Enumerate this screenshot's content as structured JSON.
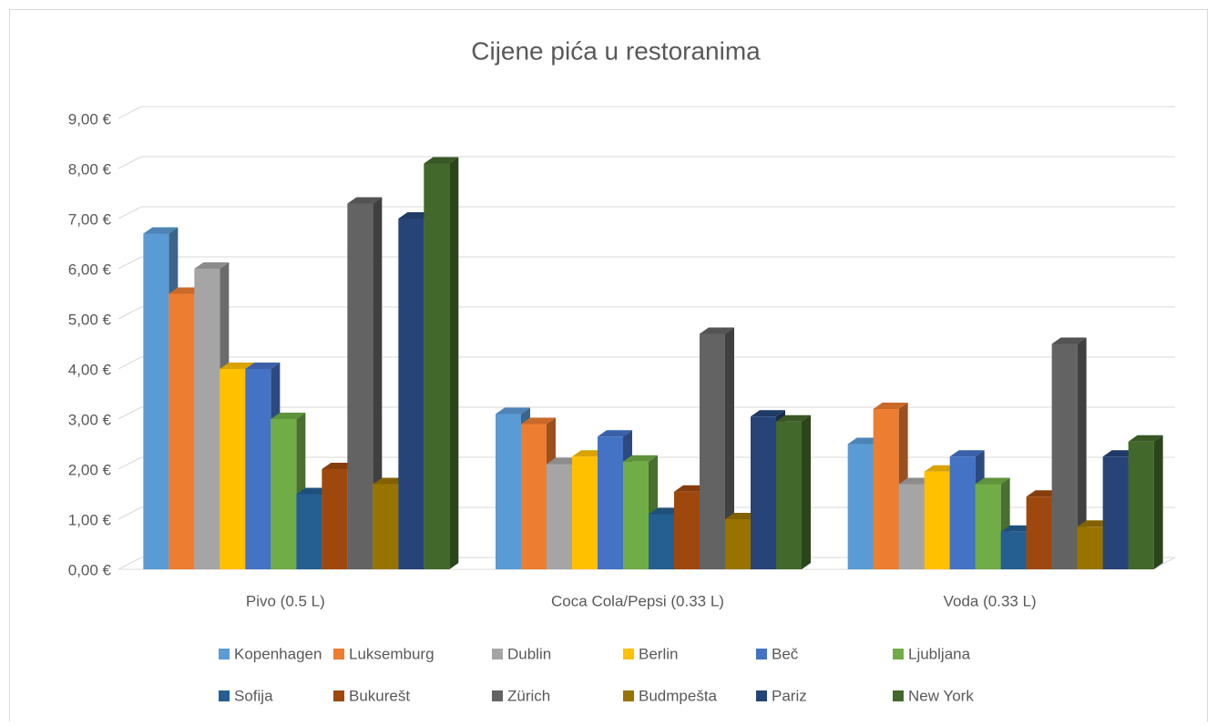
{
  "chart_data": {
    "type": "bar3d",
    "title": "Cijene pića u restoranima",
    "categories": [
      "Pivo (0.5 L)",
      "Coca Cola/Pepsi (0.33 L)",
      "Voda (0.33 L)"
    ],
    "ylim": [
      0,
      9
    ],
    "yticks": [
      {
        "value": 0,
        "label": "0,00 €"
      },
      {
        "value": 1,
        "label": "1,00 €"
      },
      {
        "value": 2,
        "label": "2,00 €"
      },
      {
        "value": 3,
        "label": "3,00 €"
      },
      {
        "value": 4,
        "label": "4,00 €"
      },
      {
        "value": 5,
        "label": "5,00 €"
      },
      {
        "value": 6,
        "label": "6,00 €"
      },
      {
        "value": 7,
        "label": "7,00 €"
      },
      {
        "value": 8,
        "label": "8,00 €"
      },
      {
        "value": 9,
        "label": "9,00 €"
      }
    ],
    "grid": true,
    "legend": "bottom",
    "series": [
      {
        "name": "Kopenhagen",
        "color": "#5b9bd5",
        "values": [
          6.7,
          3.1,
          2.5
        ]
      },
      {
        "name": "Luksemburg",
        "color": "#ed7d31",
        "values": [
          5.5,
          2.9,
          3.2
        ]
      },
      {
        "name": "Dublin",
        "color": "#a5a5a5",
        "values": [
          6.0,
          2.1,
          1.7
        ]
      },
      {
        "name": "Berlin",
        "color": "#ffc000",
        "values": [
          4.0,
          2.25,
          1.95
        ]
      },
      {
        "name": "Beč",
        "color": "#4472c4",
        "values": [
          4.0,
          2.65,
          2.25
        ]
      },
      {
        "name": "Ljubljana",
        "color": "#70ad47",
        "values": [
          3.0,
          2.15,
          1.7
        ]
      },
      {
        "name": "Sofija",
        "color": "#255e91",
        "values": [
          1.5,
          1.1,
          0.75
        ]
      },
      {
        "name": "Bukurešt",
        "color": "#9e480e",
        "values": [
          2.0,
          1.55,
          1.45
        ]
      },
      {
        "name": "Zürich",
        "color": "#636363",
        "values": [
          7.3,
          4.7,
          4.5
        ]
      },
      {
        "name": "Budmpešta",
        "color": "#997300",
        "values": [
          1.7,
          1.0,
          0.85
        ]
      },
      {
        "name": "Pariz",
        "color": "#264478",
        "values": [
          7.0,
          3.05,
          2.25
        ]
      },
      {
        "name": "New York",
        "color": "#43682b",
        "values": [
          8.1,
          2.95,
          2.55
        ]
      }
    ]
  }
}
